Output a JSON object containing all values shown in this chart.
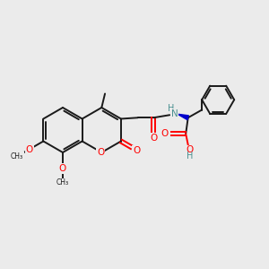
{
  "bg_color": "#ebebeb",
  "bond_color": "#1a1a1a",
  "oxygen_color": "#ff0000",
  "nitrogen_color": "#0000cc",
  "nitrogen_text_color": "#4a9090",
  "figsize": [
    3.0,
    3.0
  ],
  "dpi": 100,
  "xlim": [
    0,
    12
  ],
  "ylim": [
    0,
    10
  ]
}
